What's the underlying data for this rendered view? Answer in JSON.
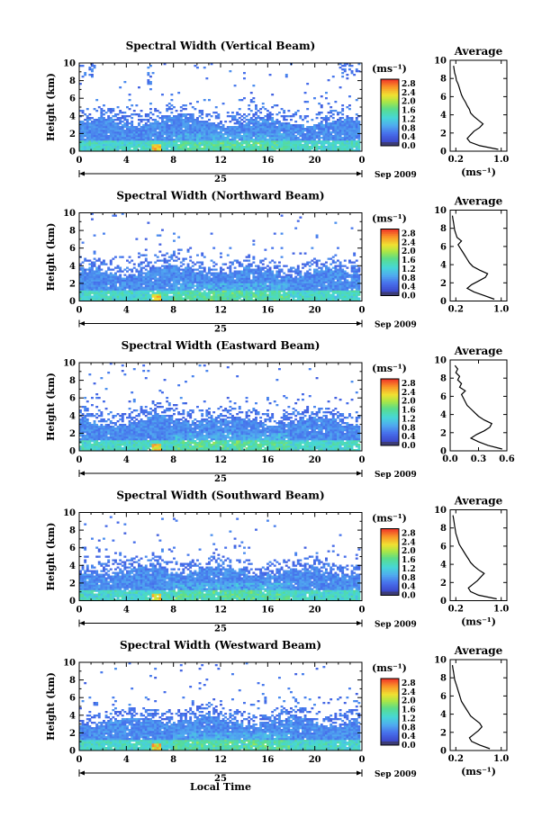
{
  "figure": {
    "height_axis_label": "Height (km)",
    "colorbar_unit": "(ms⁻¹)",
    "average_unit": "(ms⁻¹)",
    "average_title": "Average",
    "date_label": "Sep 2009",
    "day_label": "25",
    "xlabel": "Local Time"
  },
  "chart_data": [
    {
      "type": "heatmap",
      "title": "Spectral Width (Vertical Beam)",
      "xlabel": "Local Time",
      "ylabel": "Height (km)",
      "x_ticks": [
        "0",
        "4",
        "8",
        "12",
        "16",
        "20",
        "0"
      ],
      "y_ticks": [
        "0",
        "2",
        "4",
        "6",
        "8",
        "10"
      ],
      "xlim": [
        0,
        24
      ],
      "ylim": [
        0,
        10
      ],
      "colorbar": {
        "label": "(ms⁻¹)",
        "ticks": [
          "0.0",
          "0.4",
          "0.8",
          "1.2",
          "1.6",
          "2.0",
          "2.4",
          "2.8"
        ],
        "range": [
          0,
          3.0
        ]
      },
      "avg_profile": {
        "title": "Average",
        "xlabel": "(ms⁻¹)",
        "x_ticks": [
          "0.2",
          "1.0"
        ],
        "xlim": [
          0.1,
          1.1
        ],
        "height": [
          0.2,
          0.6,
          1.0,
          1.4,
          1.8,
          2.2,
          2.6,
          3.0,
          3.4,
          3.8,
          4.2,
          4.6,
          5.0,
          5.4,
          5.8,
          6.2,
          6.6,
          7.0,
          7.4,
          7.8,
          8.2,
          8.6,
          9.0,
          9.4
        ],
        "width": [
          0.95,
          0.62,
          0.45,
          0.4,
          0.46,
          0.52,
          0.62,
          0.68,
          0.6,
          0.52,
          0.46,
          0.44,
          0.4,
          0.37,
          0.33,
          0.3,
          0.28,
          0.26,
          0.24,
          0.21,
          0.2,
          0.18,
          0.17,
          0.16
        ]
      }
    },
    {
      "type": "heatmap",
      "title": "Spectral Width (Northward Beam)",
      "xlabel": "Local Time",
      "ylabel": "Height (km)",
      "x_ticks": [
        "0",
        "4",
        "8",
        "12",
        "16",
        "20",
        "0"
      ],
      "y_ticks": [
        "0",
        "2",
        "4",
        "6",
        "8",
        "10"
      ],
      "xlim": [
        0,
        24
      ],
      "ylim": [
        0,
        10
      ],
      "colorbar": {
        "label": "(ms⁻¹)",
        "ticks": [
          "0.0",
          "0.4",
          "0.8",
          "1.2",
          "1.6",
          "2.0",
          "2.4",
          "2.8"
        ],
        "range": [
          0,
          3.0
        ]
      },
      "avg_profile": {
        "title": "Average",
        "xlabel": "",
        "x_ticks": [
          "0.2",
          "1.0"
        ],
        "xlim": [
          0.1,
          1.1
        ],
        "height": [
          0.2,
          0.6,
          1.0,
          1.4,
          1.8,
          2.2,
          2.6,
          3.0,
          3.4,
          3.8,
          4.2,
          4.6,
          5.0,
          5.4,
          5.8,
          6.2,
          6.6,
          7.0,
          7.4,
          7.8,
          8.2,
          8.6,
          9.0,
          9.4
        ],
        "width": [
          0.88,
          0.7,
          0.52,
          0.4,
          0.48,
          0.6,
          0.72,
          0.76,
          0.62,
          0.5,
          0.44,
          0.4,
          0.36,
          0.32,
          0.28,
          0.24,
          0.3,
          0.22,
          0.2,
          0.18,
          0.17,
          0.16,
          0.15,
          0.14
        ]
      }
    },
    {
      "type": "heatmap",
      "title": "Spectral Width (Eastward Beam)",
      "xlabel": "Local Time",
      "ylabel": "Height (km)",
      "x_ticks": [
        "0",
        "4",
        "8",
        "12",
        "16",
        "20",
        "0"
      ],
      "y_ticks": [
        "0",
        "2",
        "4",
        "6",
        "8",
        "10"
      ],
      "xlim": [
        0,
        24
      ],
      "ylim": [
        0,
        10
      ],
      "colorbar": {
        "label": "(ms⁻¹)",
        "ticks": [
          "0.0",
          "0.4",
          "0.8",
          "1.2",
          "1.6",
          "2.0",
          "2.4",
          "2.8"
        ],
        "range": [
          0,
          3.0
        ]
      },
      "avg_profile": {
        "title": "Average",
        "xlabel": "",
        "x_ticks": [
          "0.0",
          "0.3",
          "0.6"
        ],
        "xlim": [
          0.0,
          0.6
        ],
        "height": [
          0.2,
          0.6,
          1.0,
          1.4,
          1.8,
          2.2,
          2.6,
          3.0,
          3.4,
          3.8,
          4.2,
          4.6,
          5.0,
          5.4,
          5.8,
          6.2,
          6.6,
          7.0,
          7.4,
          7.8,
          8.2,
          8.6,
          9.0,
          9.4
        ],
        "width": [
          0.55,
          0.4,
          0.3,
          0.22,
          0.28,
          0.36,
          0.42,
          0.44,
          0.36,
          0.3,
          0.26,
          0.22,
          0.18,
          0.16,
          0.14,
          0.12,
          0.16,
          0.1,
          0.12,
          0.08,
          0.1,
          0.06,
          0.08,
          0.05
        ]
      }
    },
    {
      "type": "heatmap",
      "title": "Spectral Width (Southward Beam)",
      "xlabel": "Local Time",
      "ylabel": "Height (km)",
      "x_ticks": [
        "0",
        "4",
        "8",
        "12",
        "16",
        "20",
        "0"
      ],
      "y_ticks": [
        "0",
        "2",
        "4",
        "6",
        "8",
        "10"
      ],
      "xlim": [
        0,
        24
      ],
      "ylim": [
        0,
        10
      ],
      "colorbar": {
        "label": "(ms⁻¹)",
        "ticks": [
          "0.0",
          "0.4",
          "0.8",
          "1.2",
          "1.6",
          "2.0",
          "2.4",
          "2.8"
        ],
        "range": [
          0,
          3.0
        ]
      },
      "avg_profile": {
        "title": "Average",
        "xlabel": "(ms⁻¹)",
        "x_ticks": [
          "0.2",
          "1.0"
        ],
        "xlim": [
          0.1,
          1.1
        ],
        "height": [
          0.2,
          0.6,
          1.0,
          1.4,
          1.8,
          2.2,
          2.6,
          3.0,
          3.4,
          3.8,
          4.2,
          4.6,
          5.0,
          5.4,
          5.8,
          6.2,
          6.6,
          7.0,
          7.4,
          7.8,
          8.2,
          8.6,
          9.0,
          9.4
        ],
        "width": [
          0.92,
          0.6,
          0.46,
          0.42,
          0.5,
          0.58,
          0.64,
          0.7,
          0.6,
          0.52,
          0.46,
          0.42,
          0.38,
          0.34,
          0.3,
          0.26,
          0.24,
          0.22,
          0.2,
          0.19,
          0.18,
          0.17,
          0.16,
          0.15
        ]
      }
    },
    {
      "type": "heatmap",
      "title": "Spectral Width (Westward Beam)",
      "xlabel": "Local Time",
      "ylabel": "Height (km)",
      "x_ticks": [
        "0",
        "4",
        "8",
        "12",
        "16",
        "20",
        "0"
      ],
      "y_ticks": [
        "0",
        "2",
        "4",
        "6",
        "8",
        "10"
      ],
      "xlim": [
        0,
        24
      ],
      "ylim": [
        0,
        10
      ],
      "colorbar": {
        "label": "(ms⁻¹)",
        "ticks": [
          "0.0",
          "0.4",
          "0.8",
          "1.2",
          "1.6",
          "2.0",
          "2.4",
          "2.8"
        ],
        "range": [
          0,
          3.0
        ]
      },
      "avg_profile": {
        "title": "Average",
        "xlabel": "(ms⁻¹)",
        "x_ticks": [
          "0.2",
          "1.0"
        ],
        "xlim": [
          0.1,
          1.1
        ],
        "height": [
          0.2,
          0.6,
          1.0,
          1.4,
          1.8,
          2.2,
          2.6,
          3.0,
          3.4,
          3.8,
          4.2,
          4.6,
          5.0,
          5.4,
          5.8,
          6.2,
          6.6,
          7.0,
          7.4,
          7.8,
          8.2,
          8.6,
          9.0,
          9.4
        ],
        "width": [
          0.8,
          0.62,
          0.48,
          0.44,
          0.52,
          0.6,
          0.66,
          0.62,
          0.54,
          0.46,
          0.42,
          0.38,
          0.34,
          0.3,
          0.28,
          0.26,
          0.24,
          0.22,
          0.2,
          0.18,
          0.17,
          0.16,
          0.15,
          0.14
        ]
      }
    }
  ]
}
